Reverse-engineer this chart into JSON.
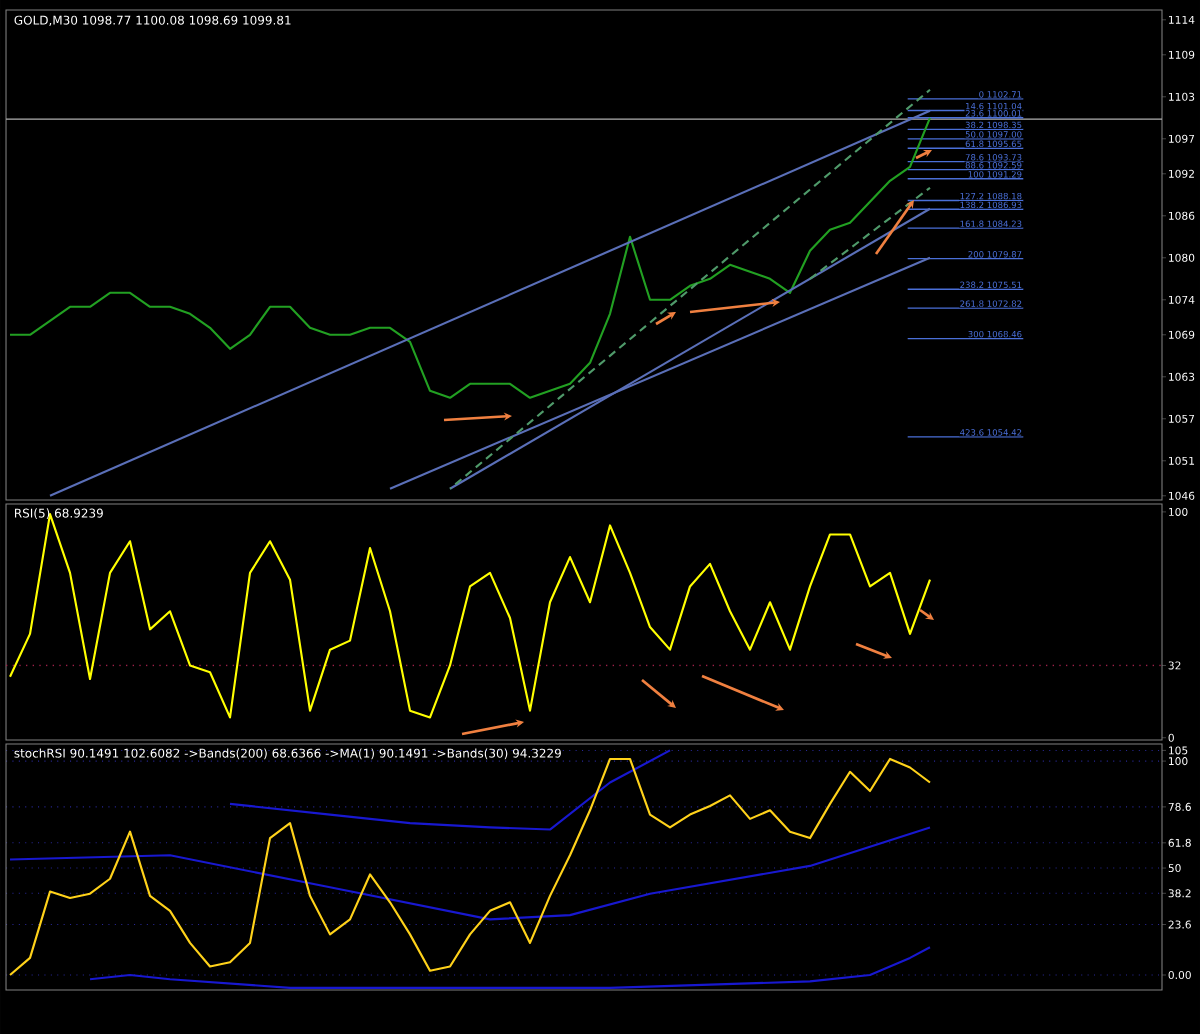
{
  "chart_data": [
    {
      "type": "line",
      "title": "GOLD,M30  1098.77 1100.08 1098.69 1099.81",
      "categories": [
        null,
        null,
        null,
        null,
        null,
        null,
        null,
        null,
        null,
        null,
        null,
        null,
        null,
        null,
        null,
        null,
        null,
        null,
        null,
        null,
        null,
        null,
        null,
        null,
        null,
        null,
        null,
        null,
        null,
        null,
        null,
        null,
        null,
        null,
        null,
        null,
        null,
        null,
        null,
        null,
        null,
        null,
        null,
        null,
        null,
        null,
        null
      ],
      "series": [
        {
          "color": "#22a022",
          "values": [
            1069,
            1069,
            1071,
            1073,
            1073,
            1075,
            1075,
            1073,
            1073,
            1072,
            1070,
            1067,
            1069,
            1073,
            1073,
            1070,
            1069,
            1069,
            1070,
            1070,
            1068,
            1061,
            1060,
            1062,
            1062,
            1062,
            1060,
            1061,
            1062,
            1065,
            1072,
            1083,
            1074,
            1074,
            1076,
            1077,
            1079,
            1078,
            1077,
            1075,
            1081,
            1084,
            1085,
            1088,
            1091,
            1093,
            1100
          ]
        },
        {
          "color": "#5a6fb8",
          "values": [
            null,
            null,
            1046,
            null,
            null,
            null,
            null,
            null,
            null,
            null,
            null,
            null,
            null,
            null,
            null,
            null,
            null,
            null,
            null,
            null,
            null,
            null,
            null,
            null,
            null,
            null,
            null,
            null,
            null,
            null,
            null,
            null,
            null,
            null,
            null,
            null,
            null,
            null,
            null,
            null,
            null,
            null,
            null,
            null,
            null,
            null,
            1101
          ]
        },
        {
          "color": "#5a6fb8",
          "values": [
            null,
            null,
            null,
            null,
            null,
            null,
            null,
            null,
            null,
            null,
            null,
            null,
            null,
            null,
            null,
            null,
            null,
            null,
            null,
            null,
            null,
            null,
            1047,
            null,
            null,
            null,
            null,
            null,
            null,
            null,
            null,
            null,
            null,
            null,
            null,
            null,
            null,
            null,
            null,
            null,
            null,
            null,
            null,
            null,
            null,
            null,
            1087
          ]
        },
        {
          "color": "#5a6fb8",
          "values": [
            null,
            null,
            null,
            null,
            null,
            null,
            null,
            null,
            null,
            null,
            null,
            null,
            null,
            null,
            null,
            null,
            null,
            null,
            null,
            1047,
            null,
            null,
            null,
            null,
            null,
            null,
            null,
            null,
            null,
            null,
            null,
            null,
            null,
            null,
            null,
            null,
            null,
            null,
            null,
            null,
            null,
            null,
            null,
            null,
            null,
            null,
            1080
          ]
        },
        {
          "color": "#4f9a6a",
          "line_style": "dashed",
          "values": [
            null,
            null,
            null,
            null,
            null,
            null,
            null,
            null,
            null,
            null,
            null,
            null,
            null,
            null,
            null,
            null,
            null,
            null,
            null,
            null,
            null,
            null,
            1047,
            null,
            null,
            null,
            null,
            null,
            null,
            null,
            null,
            null,
            null,
            null,
            null,
            null,
            null,
            null,
            null,
            null,
            null,
            null,
            null,
            null,
            null,
            null,
            1104
          ]
        },
        {
          "color": "#4f9a6a",
          "line_style": "dashed",
          "values": [
            null,
            null,
            null,
            null,
            null,
            null,
            null,
            null,
            null,
            null,
            null,
            null,
            null,
            null,
            null,
            null,
            null,
            null,
            null,
            null,
            null,
            null,
            null,
            null,
            null,
            null,
            null,
            null,
            null,
            null,
            null,
            null,
            null,
            null,
            null,
            null,
            null,
            null,
            null,
            null,
            1077,
            null,
            null,
            null,
            null,
            null,
            1090
          ]
        }
      ],
      "ylim": [
        1045.4,
        1115.4
      ],
      "yticks": [
        1114,
        1109,
        1103,
        1097,
        1092,
        1086,
        1080,
        1074,
        1069,
        1063,
        1057,
        1051,
        1046
      ],
      "tick_labels": "y",
      "ref_lines": [
        {
          "axis": "y",
          "value": 1099.81,
          "color": "#b0b0b0"
        },
        {
          "axis": "y",
          "value": 1102.71,
          "label": "0 1102.71",
          "color": "#4a6fd8"
        },
        {
          "axis": "y",
          "value": 1101.04,
          "label": "14.6 1101.04",
          "color": "#4a6fd8"
        },
        {
          "axis": "y",
          "value": 1100.01,
          "label": "23.6 1100.01",
          "color": "#4a6fd8"
        },
        {
          "axis": "y",
          "value": 1098.35,
          "label": "38.2 1098.35",
          "color": "#4a6fd8"
        },
        {
          "axis": "y",
          "value": 1097.0,
          "label": "50.0 1097.00",
          "color": "#4a6fd8"
        },
        {
          "axis": "y",
          "value": 1095.65,
          "label": "61.8 1095.65",
          "color": "#4a6fd8"
        },
        {
          "axis": "y",
          "value": 1093.73,
          "label": "78.6 1093.73",
          "color": "#4a6fd8"
        },
        {
          "axis": "y",
          "value": 1092.59,
          "label": "88.6 1092.59",
          "color": "#4a6fd8"
        },
        {
          "axis": "y",
          "value": 1091.29,
          "label": "100 1091.29",
          "color": "#4a6fd8"
        },
        {
          "axis": "y",
          "value": 1088.18,
          "label": "127.2 1088.18",
          "color": "#4a6fd8"
        },
        {
          "axis": "y",
          "value": 1086.93,
          "label": "138.2 1086.93",
          "color": "#4a6fd8"
        },
        {
          "axis": "y",
          "value": 1084.23,
          "label": "161.8 1084.23",
          "color": "#4a6fd8"
        },
        {
          "axis": "y",
          "value": 1079.87,
          "label": "200 1079.87",
          "color": "#4a6fd8"
        },
        {
          "axis": "y",
          "value": 1075.51,
          "label": "238.2 1075.51",
          "color": "#4a6fd8"
        },
        {
          "axis": "y",
          "value": 1072.82,
          "label": "261.8 1072.82",
          "color": "#4a6fd8"
        },
        {
          "axis": "y",
          "value": 1068.46,
          "label": "300 1068.46",
          "color": "#4a6fd8"
        },
        {
          "axis": "y",
          "value": 1054.42,
          "label": "423.6 1054.42",
          "color": "#4a6fd8"
        }
      ]
    },
    {
      "type": "line",
      "title": "RSI(5) 68.9239",
      "categories": [
        null,
        null,
        null,
        null,
        null,
        null,
        null,
        null,
        null,
        null,
        null,
        null,
        null,
        null,
        null,
        null,
        null,
        null,
        null,
        null,
        null,
        null,
        null,
        null,
        null,
        null,
        null,
        null,
        null,
        null,
        null,
        null,
        null,
        null,
        null,
        null,
        null,
        null,
        null,
        null,
        null,
        null,
        null,
        null,
        null,
        null,
        null
      ],
      "series": [
        {
          "color": "#ffff00",
          "values": [
            27,
            46,
            99,
            73,
            26,
            73,
            87,
            48,
            56,
            32,
            29,
            9,
            73,
            87,
            70,
            12,
            39,
            43,
            84,
            56,
            12,
            9,
            32,
            67,
            73,
            53,
            12,
            60,
            80,
            60,
            94,
            73,
            49,
            39,
            67,
            77,
            56,
            39,
            60,
            39,
            67,
            90,
            90,
            67,
            73,
            46,
            70
          ]
        }
      ],
      "ylim": [
        -1,
        103.5
      ],
      "yticks": [
        0,
        32,
        100
      ],
      "tick_labels": "y",
      "ref_lines": [
        {
          "axis": "y",
          "value": 32,
          "color": "#a0204a",
          "line_style": "dotted"
        }
      ]
    },
    {
      "type": "line",
      "title": "stochRSI 90.1491 102.6082  ->Bands(200) 68.6366  ->MA(1) 90.1491  ->Bands(30) 94.3229",
      "categories": [
        null,
        null,
        null,
        null,
        null,
        null,
        null,
        null,
        null,
        null,
        null,
        null,
        null,
        null,
        null,
        null,
        null,
        null,
        null,
        null,
        null,
        null,
        null,
        null,
        null,
        null,
        null,
        null,
        null,
        null,
        null,
        null,
        null,
        null,
        null,
        null,
        null,
        null,
        null,
        null,
        null,
        null,
        null,
        null,
        null,
        null,
        null
      ],
      "series": [
        {
          "color": "#1818d0",
          "values": [
            54,
            null,
            null,
            null,
            null,
            null,
            null,
            null,
            56,
            null,
            null,
            null,
            null,
            null,
            null,
            null,
            41,
            null,
            null,
            null,
            null,
            null,
            null,
            null,
            26,
            null,
            null,
            null,
            28,
            null,
            null,
            null,
            38,
            null,
            null,
            null,
            null,
            null,
            null,
            null,
            51,
            null,
            null,
            null,
            null,
            null,
            69
          ]
        },
        {
          "color": "#1818d0",
          "values": [
            null,
            null,
            null,
            null,
            null,
            null,
            null,
            null,
            null,
            null,
            null,
            80,
            null,
            null,
            null,
            null,
            75,
            null,
            null,
            null,
            71,
            null,
            null,
            null,
            69,
            null,
            null,
            68,
            null,
            null,
            90,
            null,
            null,
            105,
            null,
            null,
            null,
            null,
            null,
            null,
            null,
            null,
            null,
            null,
            null,
            null,
            null
          ]
        },
        {
          "color": "#1818d0",
          "values": [
            null,
            null,
            null,
            null,
            -2,
            null,
            0,
            null,
            -2,
            null,
            null,
            null,
            null,
            null,
            -6,
            null,
            null,
            null,
            null,
            null,
            null,
            null,
            null,
            null,
            null,
            null,
            null,
            null,
            null,
            null,
            -6,
            null,
            null,
            null,
            null,
            null,
            null,
            null,
            null,
            null,
            -3,
            null,
            null,
            0,
            4,
            8,
            13
          ]
        },
        {
          "color": "#ffd21a",
          "values": [
            0,
            8,
            39,
            36,
            38,
            45,
            67,
            37,
            30,
            15,
            4,
            6,
            15,
            64,
            71,
            37,
            19,
            26,
            47,
            34,
            19,
            2,
            4,
            19,
            30,
            34,
            15,
            37,
            56,
            77,
            101,
            101,
            75,
            69,
            75,
            79,
            84,
            73,
            77,
            67,
            64,
            80,
            95,
            86,
            101,
            97,
            90
          ]
        }
      ],
      "ylim": [
        -7,
        108
      ],
      "yticks": [
        105,
        100,
        78.6,
        61.8,
        50,
        38.2,
        23.6,
        {
          "value": 0,
          "label": "0.00"
        }
      ],
      "tick_labels": "y",
      "grid": "y"
    }
  ]
}
